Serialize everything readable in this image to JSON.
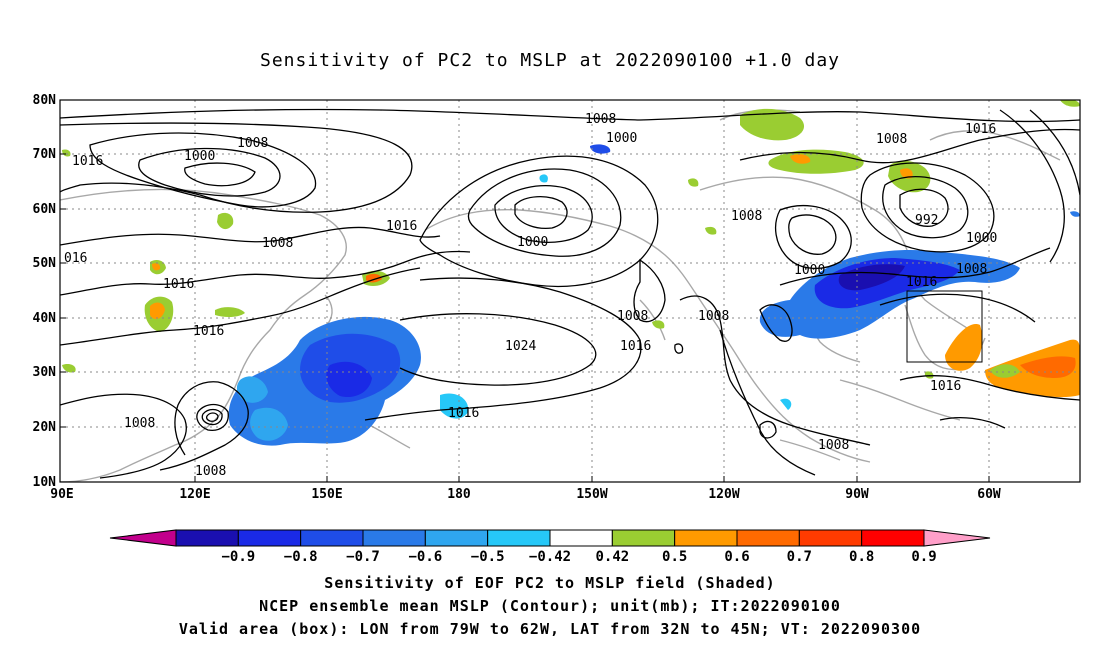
{
  "title": "Sensitivity of PC2 to MSLP at 2022090100 +1.0 day",
  "lat_labels": [
    "80N",
    "70N",
    "60N",
    "50N",
    "40N",
    "30N",
    "20N",
    "10N"
  ],
  "lon_labels": [
    "90E",
    "120E",
    "150E",
    "180",
    "150W",
    "120W",
    "90W",
    "60W"
  ],
  "contour_labels": [
    "1008",
    "1000",
    "1016",
    "1008",
    "1000",
    "1016",
    "1008",
    "1000",
    "992",
    "1000",
    "1008",
    "1016",
    "1000",
    "1008",
    "1016",
    "1016",
    "1016",
    "1016",
    "1008",
    "1008",
    "1024",
    "1016",
    "1016",
    "1008",
    "1008",
    "1008"
  ],
  "colorbar": {
    "labels": [
      "-0.9",
      "-0.8",
      "-0.7",
      "-0.6",
      "-0.5",
      "-0.42",
      "0.42",
      "0.5",
      "0.6",
      "0.7",
      "0.8",
      "0.9"
    ],
    "colors": [
      "#c2008c",
      "#1a0fb0",
      "#1a2ae6",
      "#1f4de8",
      "#2a7ae8",
      "#2fa6ef",
      "#26c8f8",
      "#ffffff",
      "#9acd32",
      "#ff9a00",
      "#ff6a00",
      "#ff3b00",
      "#ff0000",
      "#ff9fc9"
    ]
  },
  "box": {
    "lon_min": "79W",
    "lon_max": "62W",
    "lat_min": "32N",
    "lat_max": "45N"
  },
  "captions": [
    "Sensitivity of EOF PC2 to MSLP field (Shaded)",
    "NCEP ensemble mean MSLP (Contour); unit(mb); IT:2022090100",
    "Valid area (box): LON from 79W to 62W, LAT from 32N to 45N; VT: 2022090300"
  ]
}
